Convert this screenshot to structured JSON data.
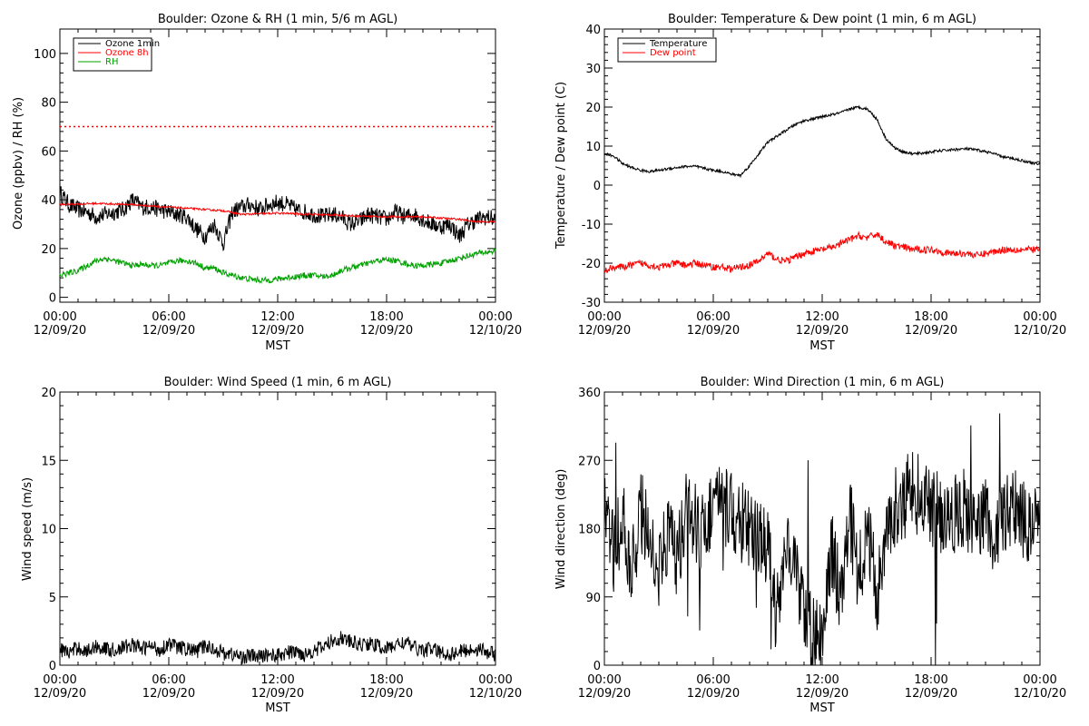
{
  "chart_data": [
    {
      "type": "line",
      "title": "Boulder: Ozone & RH (1 min, 5/6 m AGL)",
      "xlabel": "MST",
      "ylabel": "Ozone (ppbv) / RH (%)",
      "xlim": [
        0,
        24
      ],
      "ylim": [
        -2,
        110
      ],
      "yticks": [
        0,
        20,
        40,
        60,
        80,
        100
      ],
      "reference_line": {
        "y": 70,
        "color": "#ff0000",
        "style": "dotted"
      },
      "legend": {
        "position": "top-left"
      },
      "series": [
        {
          "name": "Ozone 1min",
          "color": "#000000",
          "x": [
            0,
            0.5,
            1,
            1.5,
            2,
            2.5,
            3,
            3.5,
            4,
            4.5,
            5,
            5.5,
            6,
            6.5,
            7,
            7.5,
            8,
            8.5,
            9,
            9.5,
            10,
            10.5,
            11,
            11.5,
            12,
            12.5,
            13,
            13.5,
            14,
            14.5,
            15,
            15.5,
            16,
            16.5,
            17,
            17.5,
            18,
            18.5,
            19,
            19.5,
            20,
            20.5,
            21,
            21.5,
            22,
            22.5,
            23,
            23.5,
            24
          ],
          "y": [
            43,
            38,
            36,
            35,
            33,
            34,
            35,
            36,
            40,
            37,
            37,
            36,
            35,
            34,
            33,
            28,
            25,
            30,
            22,
            35,
            37,
            38,
            36,
            38,
            39,
            38,
            36,
            35,
            34,
            33,
            34,
            33,
            30,
            31,
            34,
            33,
            32,
            35,
            33,
            34,
            32,
            30,
            29,
            30,
            25,
            30,
            32,
            33,
            32
          ]
        },
        {
          "name": "Ozone 8h",
          "color": "#ff0000",
          "x": [
            0,
            2,
            4,
            6,
            7,
            8,
            9,
            10,
            12,
            14,
            16,
            18,
            20,
            22,
            23,
            24
          ],
          "y": [
            38,
            38.5,
            38,
            37,
            36.5,
            36,
            35.5,
            34,
            34.5,
            34,
            33.5,
            33,
            33,
            32,
            31,
            31
          ]
        },
        {
          "name": "RH",
          "color": "#00a000",
          "x": [
            0,
            0.5,
            1,
            1.5,
            2,
            2.5,
            3,
            3.5,
            4,
            4.5,
            5,
            5.5,
            6,
            6.5,
            7,
            7.5,
            8,
            8.5,
            9,
            9.5,
            10,
            10.5,
            11,
            11.5,
            12,
            12.5,
            13,
            13.5,
            14,
            14.5,
            15,
            15.5,
            16,
            16.5,
            17,
            17.5,
            18,
            18.5,
            19,
            19.5,
            20,
            20.5,
            21,
            21.5,
            22,
            22.5,
            23,
            23.5,
            24
          ],
          "y": [
            9,
            10,
            11,
            13,
            15,
            16,
            15,
            14,
            13,
            13.5,
            13,
            13,
            14,
            15,
            15,
            14,
            12,
            12,
            10,
            9,
            8,
            7.5,
            7,
            7,
            7.5,
            8,
            8.5,
            9,
            9,
            8.5,
            9,
            11,
            12,
            13,
            14,
            15,
            15.5,
            15,
            14,
            13,
            13,
            13.5,
            14,
            15,
            16,
            17,
            18,
            18.5,
            19
          ]
        }
      ]
    },
    {
      "type": "line",
      "title": "Boulder: Temperature & Dew point (1 min, 6 m AGL)",
      "xlabel": "MST",
      "ylabel": "Temperature / Dew point (C)",
      "xlim": [
        0,
        24
      ],
      "ylim": [
        -30,
        40
      ],
      "yticks": [
        -30,
        -20,
        -10,
        0,
        10,
        20,
        30,
        40
      ],
      "legend": {
        "position": "top-left"
      },
      "series": [
        {
          "name": "Temperature",
          "color": "#000000",
          "x": [
            0,
            0.5,
            1,
            1.5,
            2,
            2.5,
            3,
            3.5,
            4,
            4.5,
            5,
            5.5,
            6,
            6.5,
            7,
            7.5,
            8,
            8.5,
            9,
            9.5,
            10,
            10.5,
            11,
            11.5,
            12,
            12.5,
            13,
            13.5,
            14,
            14.5,
            15,
            15.5,
            16,
            16.5,
            17,
            17.5,
            18,
            18.5,
            19,
            19.5,
            20,
            20.5,
            21,
            21.5,
            22,
            22.5,
            23,
            23.5,
            24
          ],
          "y": [
            8,
            7.5,
            5.5,
            4.5,
            3.8,
            3.5,
            3.8,
            4.2,
            4.5,
            4.8,
            4.8,
            4.3,
            3.8,
            3.5,
            2.8,
            2.5,
            5,
            8,
            11,
            12.5,
            14,
            15.5,
            16.5,
            17,
            17.5,
            18,
            18.5,
            19.5,
            20,
            19.5,
            17,
            12,
            9.5,
            8.5,
            8,
            8.2,
            8.5,
            8.8,
            9,
            9.2,
            9.3,
            9,
            8.6,
            8,
            7.2,
            6.8,
            6.3,
            5.8,
            5.3
          ]
        },
        {
          "name": "Dew point",
          "color": "#ff0000",
          "x": [
            0,
            0.5,
            1,
            1.5,
            2,
            2.5,
            3,
            3.5,
            4,
            4.5,
            5,
            5.5,
            6,
            6.5,
            7,
            7.5,
            8,
            8.5,
            9,
            9.5,
            10,
            10.5,
            11,
            11.5,
            12,
            12.5,
            13,
            13.5,
            14,
            14.5,
            15,
            15.5,
            16,
            16.5,
            17,
            17.5,
            18,
            18.5,
            19,
            19.5,
            20,
            20.5,
            21,
            21.5,
            22,
            22.5,
            23,
            23.5,
            24
          ],
          "y": [
            -22,
            -21,
            -21,
            -20.5,
            -20,
            -20.5,
            -21,
            -20.5,
            -20,
            -20.5,
            -20,
            -20.5,
            -21,
            -21,
            -21.5,
            -21,
            -20.5,
            -19.5,
            -17.5,
            -19,
            -19.5,
            -18.5,
            -17.5,
            -17,
            -16.5,
            -16,
            -15,
            -14,
            -13,
            -13.5,
            -12.5,
            -14.5,
            -15.5,
            -16,
            -16.5,
            -16.5,
            -16.5,
            -17,
            -17.5,
            -17.5,
            -17.5,
            -18,
            -17.5,
            -17,
            -16.5,
            -16.5,
            -16.5,
            -16.5,
            -16.5
          ]
        }
      ]
    },
    {
      "type": "line",
      "title": "Boulder: Wind Speed (1 min, 6 m AGL)",
      "xlabel": "MST",
      "ylabel": "Wind speed (m/s)",
      "xlim": [
        0,
        24
      ],
      "ylim": [
        0,
        20
      ],
      "yticks": [
        0,
        5,
        10,
        15,
        20
      ],
      "series": [
        {
          "color": "#000000",
          "x": [
            0,
            0.5,
            1,
            1.5,
            2,
            2.5,
            3,
            3.5,
            4,
            4.5,
            5,
            5.5,
            6,
            6.5,
            7,
            7.5,
            8,
            8.5,
            9,
            9.5,
            10,
            10.5,
            11,
            11.5,
            12,
            12.5,
            13,
            13.5,
            14,
            14.5,
            15,
            15.5,
            16,
            16.5,
            17,
            17.5,
            18,
            18.5,
            19,
            19.5,
            20,
            20.5,
            21,
            21.5,
            22,
            22.5,
            23,
            23.5,
            24
          ],
          "y": [
            1.2,
            0.9,
            1.3,
            1.0,
            1.4,
            1.2,
            1.1,
            1.3,
            1.5,
            1.2,
            1.4,
            1.1,
            1.6,
            1.3,
            1.2,
            1.0,
            1.4,
            1.2,
            0.9,
            0.8,
            0.6,
            0.7,
            0.6,
            0.8,
            0.7,
            0.9,
            1.0,
            0.8,
            1.1,
            1.3,
            1.8,
            2.0,
            1.7,
            1.5,
            1.6,
            1.4,
            1.2,
            1.5,
            1.7,
            1.3,
            1.1,
            1.2,
            0.9,
            0.8,
            1.0,
            1.1,
            1.2,
            1.0,
            0.8
          ]
        }
      ]
    },
    {
      "type": "line",
      "title": "Boulder: Wind Direction (1 min, 6 m AGL)",
      "xlabel": "MST",
      "ylabel": "Wind direction (deg)",
      "xlim": [
        0,
        24
      ],
      "ylim": [
        0,
        360
      ],
      "yticks": [
        0,
        90,
        180,
        270,
        360
      ],
      "series": [
        {
          "color": "#000000",
          "x": [
            0,
            0.5,
            1,
            1.5,
            2,
            2.5,
            3,
            3.5,
            4,
            4.5,
            5,
            5.5,
            6,
            6.5,
            7,
            7.5,
            8,
            8.5,
            9,
            9.5,
            10,
            10.5,
            11,
            11.5,
            12,
            12.5,
            13,
            13.5,
            14,
            14.5,
            15,
            15.5,
            16,
            16.5,
            17,
            17.5,
            18,
            18.5,
            19,
            19.5,
            20,
            20.5,
            21,
            21.5,
            22,
            22.5,
            23,
            23.5,
            24
          ],
          "y": [
            200,
            150,
            190,
            120,
            210,
            160,
            130,
            170,
            140,
            200,
            190,
            170,
            220,
            210,
            200,
            190,
            180,
            160,
            150,
            60,
            180,
            120,
            60,
            40,
            30,
            150,
            100,
            200,
            120,
            180,
            90,
            180,
            210,
            220,
            230,
            220,
            210,
            200,
            190,
            210,
            200,
            180,
            190,
            170,
            200,
            210,
            190,
            180,
            190
          ]
        }
      ]
    }
  ],
  "x_ticks": [
    {
      "time": "00:00",
      "date": "12/09/20"
    },
    {
      "time": "06:00",
      "date": "12/09/20"
    },
    {
      "time": "12:00",
      "date": "12/09/20"
    },
    {
      "time": "18:00",
      "date": "12/09/20"
    },
    {
      "time": "00:00",
      "date": "12/10/20"
    }
  ]
}
